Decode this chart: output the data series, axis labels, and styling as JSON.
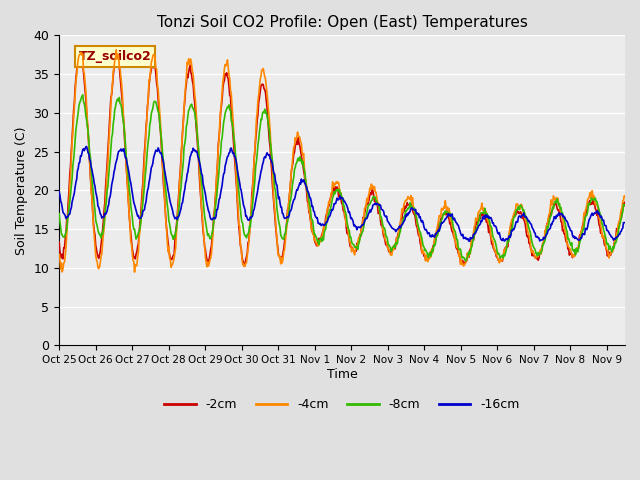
{
  "title": "Tonzi Soil CO2 Profile: Open (East) Temperatures",
  "xlabel": "Time",
  "ylabel": "Soil Temperature (C)",
  "ylim": [
    0,
    40
  ],
  "yticks": [
    0,
    5,
    10,
    15,
    20,
    25,
    30,
    35,
    40
  ],
  "colors": {
    "-2cm": "#cc0000",
    "-4cm": "#ff8800",
    "-8cm": "#33bb00",
    "-16cm": "#0000cc"
  },
  "legend_label": "TZ_soilco2",
  "legend_box_facecolor": "#ffffcc",
  "legend_box_edgecolor": "#cc8800",
  "background_color": "#e0e0e0",
  "plot_bg_color": "#ececec",
  "tick_labels": [
    "Oct 25",
    "Oct 26",
    "Oct 27",
    "Oct 28",
    "Oct 29",
    "Oct 30",
    "Oct 31",
    "Nov 1",
    "Nov 2",
    "Nov 3",
    "Nov 4",
    "Nov 5",
    "Nov 6",
    "Nov 7",
    "Nov 8",
    "Nov 9"
  ],
  "legend_entries": [
    "-2cm",
    "-4cm",
    "-8cm",
    "-16cm"
  ]
}
